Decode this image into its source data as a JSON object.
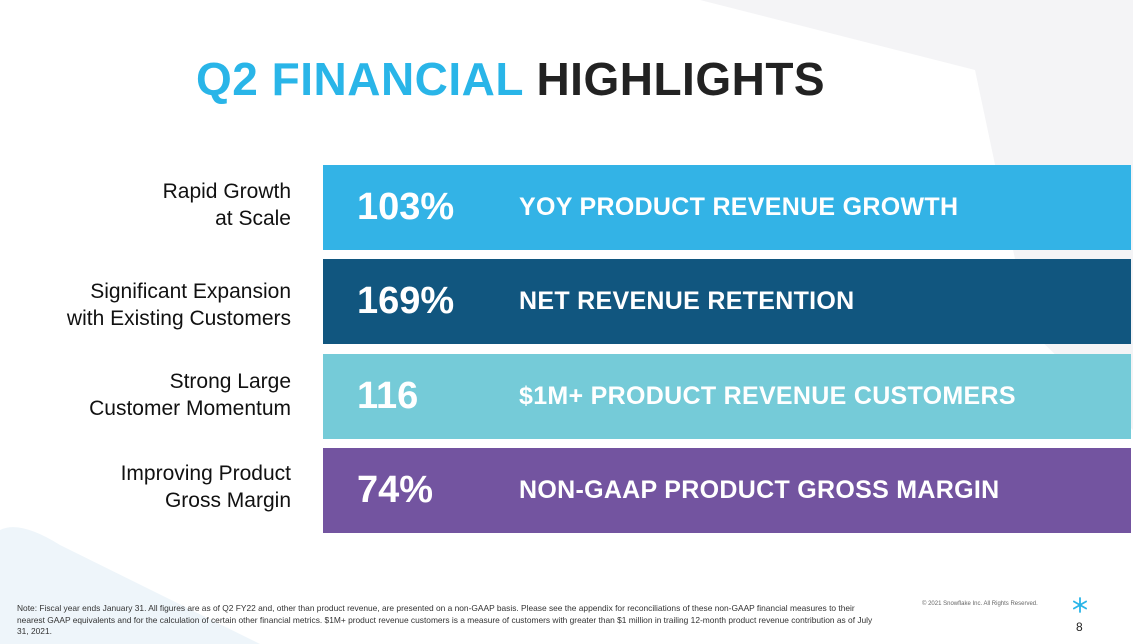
{
  "title": {
    "part1": "Q2 FINANCIAL",
    "part2": "HIGHLIGHTS"
  },
  "rows": [
    {
      "label_line1": "Rapid Growth",
      "label_line2": "at Scale",
      "value": "103%",
      "desc": "YOY PRODUCT REVENUE GROWTH",
      "color": "#33b3e6"
    },
    {
      "label_line1": "Significant Expansion",
      "label_line2": "with Existing Customers",
      "value": "169%",
      "desc": "NET REVENUE RETENTION",
      "color": "#11567f"
    },
    {
      "label_line1": "Strong Large",
      "label_line2": "Customer Momentum",
      "value": "116",
      "desc": "$1M+ PRODUCT REVENUE CUSTOMERS",
      "color": "#75cbd8"
    },
    {
      "label_line1": "Improving Product",
      "label_line2": "Gross Margin",
      "value": "74%",
      "desc": "NON-GAAP PRODUCT GROSS MARGIN",
      "color": "#7354a0"
    }
  ],
  "footer": {
    "note": "Note:  Fiscal year ends January 31. All figures are as of Q2 FY22 and, other than product revenue, are presented on a non-GAAP basis. Please see the appendix for reconciliations of these non-GAAP financial measures to their nearest GAAP equivalents and for the calculation of certain other financial metrics.  $1M+ product revenue customers is a measure of customers with greater than $1 million in trailing 12-month product revenue contribution as of July 31, 2021.",
    "copyright": "© 2021 Snowflake Inc. All Rights Reserved.",
    "page_number": "8"
  },
  "icons": {
    "logo": "snowflake-icon"
  },
  "colors": {
    "accent": "#29b5e8",
    "background_shape": "#f3f3f5"
  }
}
